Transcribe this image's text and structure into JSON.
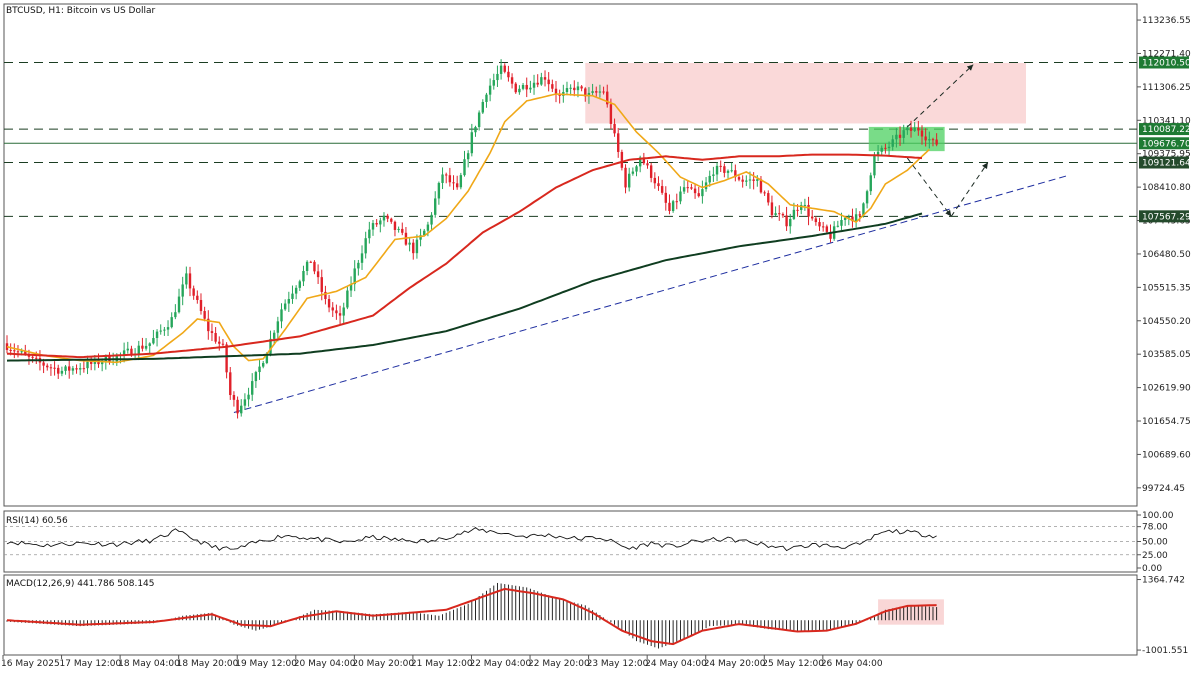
{
  "window_title": "BTCUSD, H1:  Bitcoin vs US Dollar",
  "colors": {
    "up": "#26a65b",
    "down": "#e0202a",
    "ma_fast": "#f0a818",
    "ma_mid": "#d8281e",
    "ma_slow": "#0f3d20",
    "trend": "#1e2ea0",
    "zone": "#f8cccc",
    "zone_green": "#4cd060",
    "label_green": "#1e7a33",
    "label_dark": "#244a2c"
  },
  "chart_data": [
    {
      "type": "candlestick",
      "title": "BTCUSD, H1:  Bitcoin vs US Dollar",
      "xlabel": "",
      "ylabel": "",
      "ylim": [
        99200,
        113700
      ],
      "y_ticks": [
        "113236.55",
        "112271.40",
        "111306.25",
        "110341.10",
        "109375.95",
        "108410.80",
        "107445.65",
        "106480.50",
        "105515.35",
        "104550.20",
        "103585.05",
        "102619.90",
        "101654.75",
        "100689.60",
        "99724.45"
      ],
      "x_ticks": [
        "16 May 2025",
        "17 May 12:00",
        "18 May 04:00",
        "18 May 20:00",
        "19 May 12:00",
        "20 May 04:00",
        "20 May 20:00",
        "21 May 12:00",
        "22 May 04:00",
        "22 May 20:00",
        "23 May 12:00",
        "24 May 04:00",
        "24 May 20:00",
        "25 May 12:00",
        "26 May 04:00"
      ],
      "price_key_points": [
        [
          0,
          103900
        ],
        [
          8,
          103400
        ],
        [
          16,
          103100
        ],
        [
          24,
          103300
        ],
        [
          32,
          103550
        ],
        [
          40,
          103900
        ],
        [
          46,
          104600
        ],
        [
          50,
          105800
        ],
        [
          56,
          104300
        ],
        [
          60,
          103750
        ],
        [
          62,
          102400
        ],
        [
          64,
          102000
        ],
        [
          68,
          102700
        ],
        [
          72,
          103700
        ],
        [
          76,
          104900
        ],
        [
          80,
          105600
        ],
        [
          84,
          106300
        ],
        [
          88,
          105100
        ],
        [
          92,
          104600
        ],
        [
          96,
          106000
        ],
        [
          100,
          107200
        ],
        [
          104,
          107500
        ],
        [
          108,
          107100
        ],
        [
          112,
          106600
        ],
        [
          116,
          107300
        ],
        [
          120,
          108800
        ],
        [
          124,
          108300
        ],
        [
          128,
          109900
        ],
        [
          132,
          111200
        ],
        [
          136,
          111800
        ],
        [
          140,
          111250
        ],
        [
          144,
          111400
        ],
        [
          148,
          111600
        ],
        [
          152,
          111000
        ],
        [
          156,
          111300
        ],
        [
          160,
          111050
        ],
        [
          164,
          111200
        ],
        [
          166,
          110300
        ],
        [
          170,
          108500
        ],
        [
          174,
          109300
        ],
        [
          178,
          108600
        ],
        [
          182,
          107700
        ],
        [
          186,
          108400
        ],
        [
          190,
          108100
        ],
        [
          194,
          108900
        ],
        [
          198,
          108900
        ],
        [
          202,
          108600
        ],
        [
          206,
          108600
        ],
        [
          210,
          107700
        ],
        [
          214,
          107400
        ],
        [
          218,
          108000
        ],
        [
          222,
          107300
        ],
        [
          226,
          107000
        ],
        [
          230,
          107600
        ],
        [
          234,
          107500
        ],
        [
          238,
          109300
        ],
        [
          242,
          109600
        ],
        [
          246,
          110000
        ],
        [
          250,
          110100
        ],
        [
          254,
          109676.7
        ]
      ],
      "series": [
        {
          "name": "",
          "role": "fast_ma",
          "color": "#f0a818",
          "points": [
            [
              0,
              103800
            ],
            [
              10,
              103550
            ],
            [
              20,
              103400
            ],
            [
              30,
              103350
            ],
            [
              40,
              103550
            ],
            [
              48,
              104200
            ],
            [
              52,
              104600
            ],
            [
              58,
              104500
            ],
            [
              62,
              103800
            ],
            [
              66,
              103400
            ],
            [
              70,
              103450
            ],
            [
              76,
              104300
            ],
            [
              82,
              105200
            ],
            [
              90,
              105400
            ],
            [
              98,
              105800
            ],
            [
              106,
              106900
            ],
            [
              114,
              107000
            ],
            [
              120,
              107500
            ],
            [
              126,
              108300
            ],
            [
              132,
              109400
            ],
            [
              136,
              110300
            ],
            [
              142,
              110900
            ],
            [
              150,
              111100
            ],
            [
              160,
              111050
            ],
            [
              166,
              110800
            ],
            [
              172,
              110000
            ],
            [
              178,
              109400
            ],
            [
              184,
              108700
            ],
            [
              190,
              108400
            ],
            [
              196,
              108600
            ],
            [
              202,
              108850
            ],
            [
              208,
              108500
            ],
            [
              214,
              107900
            ],
            [
              220,
              107800
            ],
            [
              226,
              107700
            ],
            [
              232,
              107400
            ],
            [
              236,
              107800
            ],
            [
              240,
              108500
            ],
            [
              246,
              108900
            ],
            [
              252,
              109500
            ]
          ]
        },
        {
          "name": "",
          "role": "mid_ma",
          "color": "#d8281e",
          "points": [
            [
              0,
              103600
            ],
            [
              20,
              103500
            ],
            [
              40,
              103600
            ],
            [
              60,
              103800
            ],
            [
              80,
              104100
            ],
            [
              100,
              104700
            ],
            [
              110,
              105500
            ],
            [
              120,
              106200
            ],
            [
              130,
              107100
            ],
            [
              140,
              107700
            ],
            [
              150,
              108400
            ],
            [
              160,
              108900
            ],
            [
              170,
              109200
            ],
            [
              180,
              109300
            ],
            [
              190,
              109200
            ],
            [
              200,
              109300
            ],
            [
              210,
              109300
            ],
            [
              220,
              109350
            ],
            [
              230,
              109350
            ],
            [
              240,
              109320
            ],
            [
              250,
              109250
            ]
          ]
        },
        {
          "name": "",
          "role": "slow_ma",
          "color": "#0f3d20",
          "points": [
            [
              0,
              103400
            ],
            [
              40,
              103450
            ],
            [
              80,
              103600
            ],
            [
              100,
              103850
            ],
            [
              120,
              104250
            ],
            [
              140,
              104900
            ],
            [
              160,
              105700
            ],
            [
              180,
              106300
            ],
            [
              200,
              106700
            ],
            [
              220,
              107000
            ],
            [
              240,
              107350
            ],
            [
              250,
              107650
            ]
          ]
        }
      ],
      "levels": [
        {
          "label": "112010.50",
          "price": 112010.5,
          "style": "dashed",
          "label_color": "#1e7a33"
        },
        {
          "label": "110087.22",
          "price": 110087.22,
          "style": "dashed",
          "label_color": "#1e7a33"
        },
        {
          "label": "109676.70",
          "price": 109676.7,
          "style": "solid",
          "label_color": "#1e7a33"
        },
        {
          "label": "109121.64",
          "price": 109121.64,
          "style": "dashed",
          "label_color": "#244a2c"
        },
        {
          "label": "107567.29",
          "price": 107567.29,
          "style": "dashed",
          "label_color": "#244a2c"
        }
      ],
      "sell_zone": {
        "from_bar": 158,
        "to_bar": 1000,
        "price_low": 110250,
        "price_high": 112000
      },
      "buy_zone": {
        "from_bar": 236,
        "to_bar": 254,
        "price_low": 109450,
        "price_high": 110150
      },
      "trendline": {
        "start": [
          62,
          101900
        ],
        "end": [
          290,
          108750
        ]
      },
      "scenario_arrows": [
        {
          "from": [
            246,
            110150
          ],
          "to": [
            264,
            111950
          ]
        },
        {
          "from": [
            246,
            109250
          ],
          "to": [
            258,
            107567
          ]
        },
        {
          "from": [
            258,
            107567
          ],
          "to": [
            268,
            109121
          ]
        }
      ]
    },
    {
      "type": "line",
      "title": "RSI(14) 60.56",
      "ylim": [
        0,
        100
      ],
      "y_ticks": [
        "100.00",
        "78.00",
        "50.00",
        "25.00",
        "0.00"
      ],
      "levels": [
        78,
        50,
        25
      ],
      "series": [
        {
          "name": "RSI(14)",
          "color": "#111111",
          "points": [
            [
              0,
              50
            ],
            [
              10,
              43
            ],
            [
              20,
              47
            ],
            [
              30,
              45
            ],
            [
              40,
              52
            ],
            [
              46,
              70
            ],
            [
              50,
              58
            ],
            [
              56,
              40
            ],
            [
              62,
              34
            ],
            [
              68,
              48
            ],
            [
              76,
              62
            ],
            [
              84,
              55
            ],
            [
              92,
              48
            ],
            [
              100,
              58
            ],
            [
              108,
              52
            ],
            [
              116,
              50
            ],
            [
              122,
              62
            ],
            [
              128,
              72
            ],
            [
              134,
              68
            ],
            [
              140,
              60
            ],
            [
              148,
              62
            ],
            [
              156,
              55
            ],
            [
              162,
              58
            ],
            [
              166,
              48
            ],
            [
              170,
              36
            ],
            [
              176,
              47
            ],
            [
              182,
              40
            ],
            [
              188,
              50
            ],
            [
              196,
              55
            ],
            [
              202,
              50
            ],
            [
              208,
              42
            ],
            [
              214,
              36
            ],
            [
              220,
              44
            ],
            [
              228,
              40
            ],
            [
              234,
              45
            ],
            [
              238,
              64
            ],
            [
              242,
              70
            ],
            [
              248,
              66
            ],
            [
              252,
              62
            ],
            [
              254,
              60.56
            ]
          ]
        }
      ]
    },
    {
      "type": "bar",
      "title": "MACD(12,26,9) 441.786 508.145",
      "ylim": [
        -1100,
        1450
      ],
      "y_ticks": [
        "1364.742",
        "-1001.551"
      ],
      "series": [
        {
          "name": "MACD",
          "color": "#111111",
          "points": [
            [
              0,
              -50
            ],
            [
              20,
              -200
            ],
            [
              40,
              -100
            ],
            [
              48,
              150
            ],
            [
              56,
              250
            ],
            [
              62,
              -150
            ],
            [
              68,
              -350
            ],
            [
              76,
              -80
            ],
            [
              84,
              350
            ],
            [
              92,
              300
            ],
            [
              100,
              200
            ],
            [
              110,
              280
            ],
            [
              118,
              150
            ],
            [
              126,
              550
            ],
            [
              134,
              1250
            ],
            [
              142,
              1100
            ],
            [
              150,
              750
            ],
            [
              158,
              500
            ],
            [
              166,
              -150
            ],
            [
              172,
              -700
            ],
            [
              178,
              -950
            ],
            [
              186,
              -600
            ],
            [
              192,
              -200
            ],
            [
              200,
              -150
            ],
            [
              208,
              -300
            ],
            [
              216,
              -380
            ],
            [
              224,
              -330
            ],
            [
              232,
              -150
            ],
            [
              240,
              350
            ],
            [
              246,
              500
            ],
            [
              254,
              441.786
            ]
          ]
        },
        {
          "name": "Signal",
          "color": "#d8281e",
          "points": [
            [
              0,
              0
            ],
            [
              20,
              -150
            ],
            [
              40,
              -60
            ],
            [
              56,
              200
            ],
            [
              64,
              -150
            ],
            [
              72,
              -200
            ],
            [
              80,
              100
            ],
            [
              90,
              300
            ],
            [
              100,
              150
            ],
            [
              110,
              250
            ],
            [
              120,
              350
            ],
            [
              128,
              700
            ],
            [
              136,
              1050
            ],
            [
              144,
              900
            ],
            [
              152,
              700
            ],
            [
              160,
              250
            ],
            [
              168,
              -350
            ],
            [
              176,
              -700
            ],
            [
              182,
              -800
            ],
            [
              190,
              -350
            ],
            [
              200,
              -130
            ],
            [
              208,
              -250
            ],
            [
              216,
              -380
            ],
            [
              224,
              -350
            ],
            [
              232,
              -120
            ],
            [
              240,
              300
            ],
            [
              246,
              480
            ],
            [
              254,
              508.145
            ]
          ]
        }
      ],
      "highlight": {
        "from_bar": 238,
        "to_bar": 256,
        "v_low": -150,
        "v_high": 700
      }
    }
  ]
}
